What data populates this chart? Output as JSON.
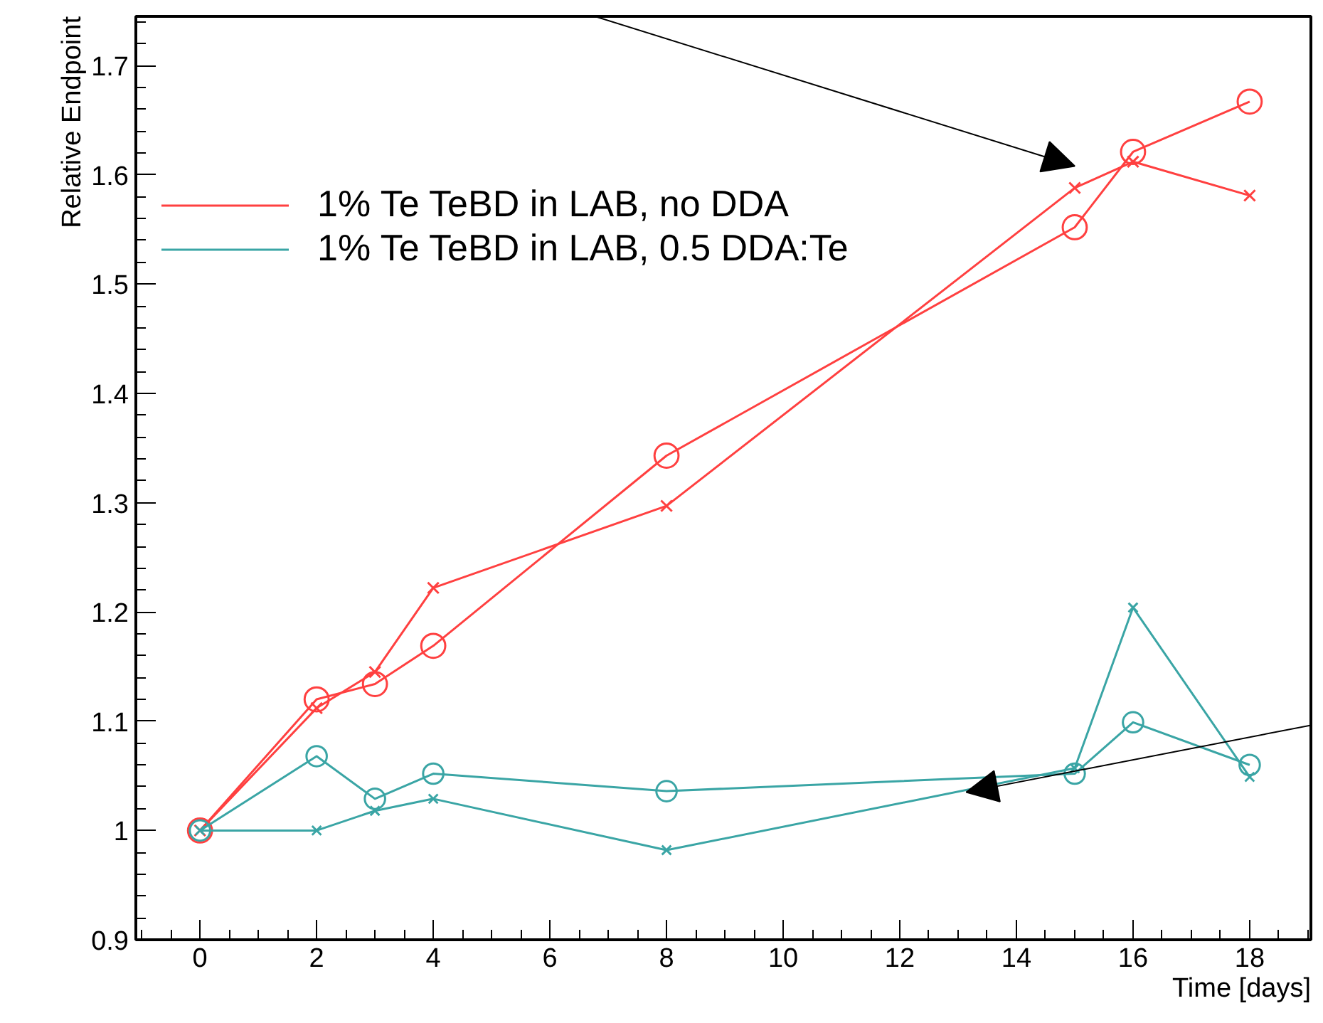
{
  "chart_data": {
    "type": "line",
    "xlabel": "Time [days]",
    "ylabel": "Relative Endpoint",
    "xlim": [
      -1.1,
      19.05
    ],
    "ylim": [
      0.9,
      1.745
    ],
    "xticks": [
      0,
      2,
      4,
      6,
      8,
      10,
      12,
      14,
      16,
      18
    ],
    "yticks": [
      0.9,
      {
        "value": 1.0,
        "label": "1"
      },
      1.1,
      1.2,
      1.3,
      1.4,
      1.5,
      1.6,
      1.7
    ],
    "grid": false,
    "legend": "top left",
    "line_style": "solid",
    "x": [
      0,
      2,
      3,
      4,
      8,
      15,
      16,
      18
    ],
    "series": [
      {
        "name": "1% Te TeBD in LAB, no DDA",
        "color": "#ff4040",
        "marker": "circle",
        "values": [
          1.0,
          1.12,
          1.134,
          1.169,
          1.343,
          1.552,
          1.621,
          1.667
        ]
      },
      {
        "color": "#ff4040",
        "marker": "cross",
        "values": [
          1.0,
          1.112,
          1.145,
          1.222,
          1.297,
          1.588,
          1.612,
          1.581
        ]
      },
      {
        "name": "1% Te TeBD in LAB, 0.5 DDA:Te",
        "color": "#3aa5a5",
        "marker": "circle",
        "values": [
          1.0,
          1.068,
          1.029,
          1.052,
          1.036,
          1.052,
          1.099,
          1.06
        ]
      },
      {
        "color": "#3aa5a5",
        "marker": "cross",
        "values": [
          1.0,
          1.0,
          1.018,
          1.029,
          0.982,
          1.057,
          1.204,
          1.049
        ]
      }
    ]
  }
}
